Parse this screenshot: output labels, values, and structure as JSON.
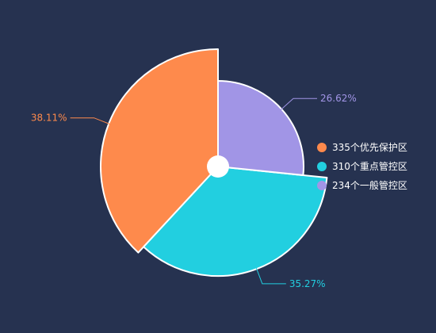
{
  "chart_data": {
    "type": "pie",
    "style": "rose-by-radius",
    "colors": {
      "background": "#263250",
      "slice_border": "#ffffff",
      "center_dot": "#ffffff"
    },
    "legend_position": "right",
    "slices": [
      {
        "label": "335个优先保护区",
        "value": 335,
        "percent_label": "38.11%",
        "color": "#fe8a4c"
      },
      {
        "label": "310个重点管控区",
        "value": 310,
        "percent_label": "35.27%",
        "color": "#22cfe0"
      },
      {
        "label": "234个一般管控区",
        "value": 234,
        "percent_label": "26.62%",
        "color": "#a195e6"
      }
    ]
  }
}
